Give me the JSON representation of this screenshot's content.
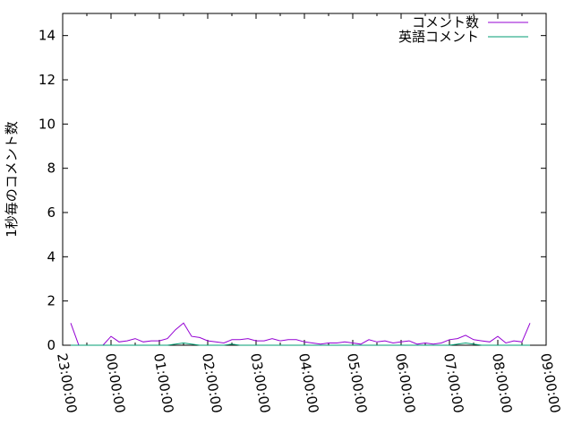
{
  "chart_data": {
    "type": "line",
    "title": "",
    "xlabel": "",
    "ylabel": "1秒毎のコメント数",
    "xlim": [
      "23:00:00",
      "09:00:00"
    ],
    "ylim": [
      0,
      15
    ],
    "grid": false,
    "legend_position": "top-right",
    "x_tick_labels": [
      "23:00:00",
      "00:00:00",
      "01:00:00",
      "02:00:00",
      "03:00:00",
      "04:00:00",
      "05:00:00",
      "06:00:00",
      "07:00:00",
      "08:00:00",
      "09:00:00"
    ],
    "y_tick_labels": [
      "0",
      "2",
      "4",
      "6",
      "8",
      "10",
      "12",
      "14"
    ],
    "y_ticks": [
      0,
      2,
      4,
      6,
      8,
      10,
      12,
      14
    ],
    "x": [
      "23:10",
      "23:20",
      "23:30",
      "23:40",
      "23:50",
      "00:00",
      "00:10",
      "00:20",
      "00:30",
      "00:40",
      "00:50",
      "01:00",
      "01:10",
      "01:20",
      "01:30",
      "01:40",
      "01:50",
      "02:00",
      "02:10",
      "02:20",
      "02:30",
      "02:40",
      "02:50",
      "03:00",
      "03:10",
      "03:20",
      "03:30",
      "03:40",
      "03:50",
      "04:00",
      "04:10",
      "04:20",
      "04:30",
      "04:40",
      "04:50",
      "05:00",
      "05:10",
      "05:20",
      "05:30",
      "05:40",
      "05:50",
      "06:00",
      "06:10",
      "06:20",
      "06:30",
      "06:40",
      "06:50",
      "07:00",
      "07:10",
      "07:20",
      "07:30",
      "07:40",
      "07:50",
      "08:00",
      "08:10",
      "08:20",
      "08:30",
      "08:40"
    ],
    "series": [
      {
        "name": "コメント数",
        "color": "#9400d3",
        "values": [
          1.0,
          0,
          0,
          0,
          0,
          0.4,
          0.15,
          0.2,
          0.3,
          0.15,
          0.2,
          0.2,
          0.3,
          0.7,
          1.0,
          0.4,
          0.35,
          0.2,
          0.15,
          0.1,
          0.25,
          0.25,
          0.3,
          0.2,
          0.2,
          0.3,
          0.2,
          0.25,
          0.25,
          0.15,
          0.1,
          0.05,
          0.1,
          0.1,
          0.15,
          0.1,
          0.05,
          0.25,
          0.15,
          0.2,
          0.1,
          0.15,
          0.2,
          0.05,
          0.1,
          0.05,
          0.1,
          0.25,
          0.3,
          0.45,
          0.25,
          0.2,
          0.15,
          0.4,
          0.1,
          0.2,
          0.15,
          1.0
        ]
      },
      {
        "name": "英語コメント",
        "color": "#009e73",
        "values": [
          0,
          0,
          0,
          0,
          0,
          0,
          0,
          0,
          0,
          0,
          0,
          0,
          0,
          0.05,
          0.1,
          0.05,
          0,
          0,
          0,
          0,
          0.05,
          0,
          0,
          0,
          0,
          0,
          0,
          0,
          0,
          0,
          0,
          0,
          0,
          0,
          0,
          0,
          0,
          0,
          0,
          0,
          0,
          0,
          0,
          0,
          0,
          0,
          0,
          0,
          0.05,
          0.1,
          0.05,
          0,
          0,
          0,
          0,
          0,
          0,
          0
        ]
      }
    ]
  }
}
